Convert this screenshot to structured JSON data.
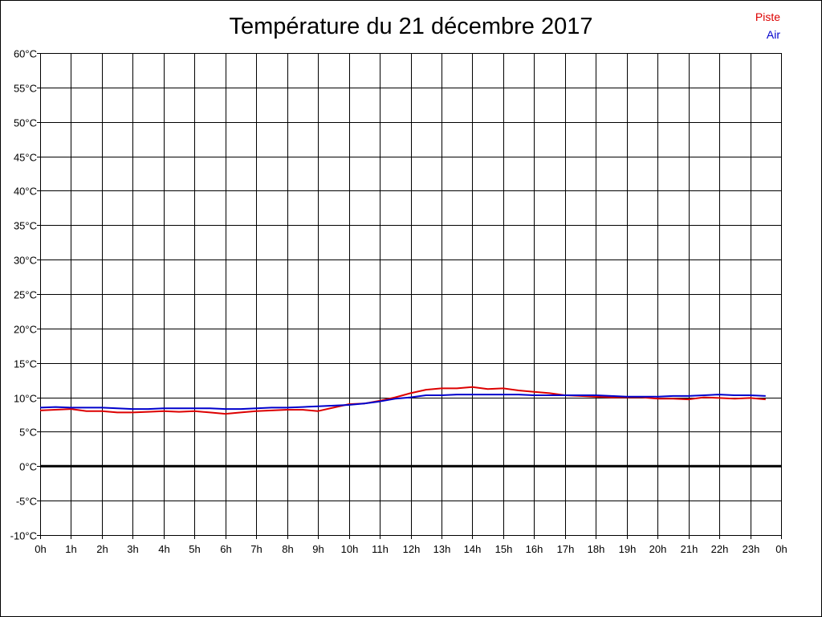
{
  "chart_data": {
    "type": "line",
    "title": "Température du 21 décembre 2017",
    "xlabel": "",
    "ylabel": "",
    "x_tick_labels": [
      "0h",
      "1h",
      "2h",
      "3h",
      "4h",
      "5h",
      "6h",
      "7h",
      "8h",
      "9h",
      "10h",
      "11h",
      "12h",
      "13h",
      "14h",
      "15h",
      "16h",
      "17h",
      "18h",
      "19h",
      "20h",
      "21h",
      "22h",
      "23h",
      "0h"
    ],
    "y_tick_labels": [
      "60°C",
      "55°C",
      "50°C",
      "45°C",
      "40°C",
      "35°C",
      "30°C",
      "25°C",
      "20°C",
      "15°C",
      "10°C",
      "5°C",
      "0°C",
      "-5°C",
      "-10°C"
    ],
    "xlim": [
      0,
      24
    ],
    "ylim": [
      -10,
      60
    ],
    "grid": true,
    "zero_line": true,
    "legend_position": "top-right",
    "series": [
      {
        "name": "Piste",
        "color": "#dd0000",
        "x": [
          0,
          0.5,
          1,
          1.5,
          2,
          2.5,
          3,
          3.5,
          4,
          4.5,
          5,
          5.5,
          6,
          6.5,
          7,
          7.5,
          8,
          8.5,
          9,
          9.5,
          10,
          10.5,
          11,
          11.5,
          12,
          12.5,
          13,
          13.5,
          14,
          14.5,
          15,
          15.5,
          16,
          16.5,
          17,
          17.5,
          18,
          18.5,
          19,
          19.5,
          20,
          20.5,
          21,
          21.5,
          22,
          22.5,
          23,
          23.5
        ],
        "values": [
          8.1,
          8.2,
          8.3,
          8.0,
          8.0,
          7.8,
          7.8,
          7.9,
          8.0,
          7.9,
          8.0,
          7.8,
          7.6,
          7.8,
          8.0,
          8.1,
          8.2,
          8.2,
          8.0,
          8.5,
          9.0,
          9.1,
          9.5,
          10.0,
          10.6,
          11.1,
          11.3,
          11.3,
          11.5,
          11.2,
          11.3,
          11.0,
          10.8,
          10.6,
          10.3,
          10.2,
          10.1,
          10.0,
          10.0,
          10.0,
          9.8,
          9.8,
          9.7,
          10.0,
          9.9,
          9.8,
          9.9,
          9.7
        ]
      },
      {
        "name": "Air",
        "color": "#0000cc",
        "x": [
          0,
          0.5,
          1,
          1.5,
          2,
          2.5,
          3,
          3.5,
          4,
          4.5,
          5,
          5.5,
          6,
          6.5,
          7,
          7.5,
          8,
          8.5,
          9,
          9.5,
          10,
          10.5,
          11,
          11.5,
          12,
          12.5,
          13,
          13.5,
          14,
          14.5,
          15,
          15.5,
          16,
          16.5,
          17,
          17.5,
          18,
          18.5,
          19,
          19.5,
          20,
          20.5,
          21,
          21.5,
          22,
          22.5,
          23,
          23.5
        ],
        "values": [
          8.5,
          8.6,
          8.5,
          8.5,
          8.5,
          8.4,
          8.3,
          8.3,
          8.4,
          8.4,
          8.4,
          8.4,
          8.3,
          8.3,
          8.4,
          8.5,
          8.5,
          8.6,
          8.7,
          8.8,
          8.9,
          9.1,
          9.4,
          9.8,
          10.0,
          10.3,
          10.3,
          10.4,
          10.4,
          10.4,
          10.4,
          10.4,
          10.3,
          10.3,
          10.3,
          10.3,
          10.3,
          10.2,
          10.1,
          10.1,
          10.1,
          10.2,
          10.2,
          10.3,
          10.4,
          10.3,
          10.3,
          10.2
        ]
      }
    ]
  }
}
